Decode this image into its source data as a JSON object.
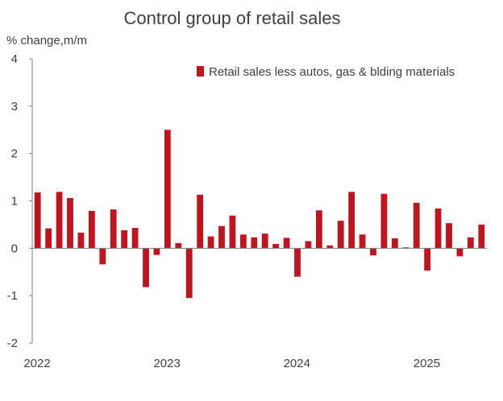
{
  "chart_data": {
    "type": "bar",
    "title": "Control group of retail sales",
    "ylabel": "% change,m/m",
    "xlabel": "",
    "ylim": [
      -2,
      4
    ],
    "yticks": [
      4,
      3,
      2,
      1,
      0,
      -1,
      -2
    ],
    "xtick_labels": [
      {
        "label": "2022",
        "index": 0
      },
      {
        "label": "2023",
        "index": 12
      },
      {
        "label": "2024",
        "index": 24
      },
      {
        "label": "2025",
        "index": 36
      }
    ],
    "series": [
      {
        "name": "Retail sales less autos, gas & blding materials",
        "color": "#c0141f",
        "values": [
          1.18,
          0.42,
          1.19,
          1.06,
          0.33,
          0.79,
          -0.34,
          0.82,
          0.38,
          0.43,
          -0.82,
          -0.14,
          2.5,
          0.11,
          -1.05,
          1.13,
          0.25,
          0.47,
          0.69,
          0.29,
          0.23,
          0.31,
          0.09,
          0.22,
          -0.6,
          0.15,
          0.8,
          0.06,
          0.58,
          1.19,
          0.29,
          -0.15,
          1.15,
          0.21,
          0.02,
          0.96,
          -0.47,
          0.84,
          0.53,
          -0.17,
          0.23,
          0.5
        ]
      }
    ],
    "legend": "top-right",
    "grid": false
  }
}
